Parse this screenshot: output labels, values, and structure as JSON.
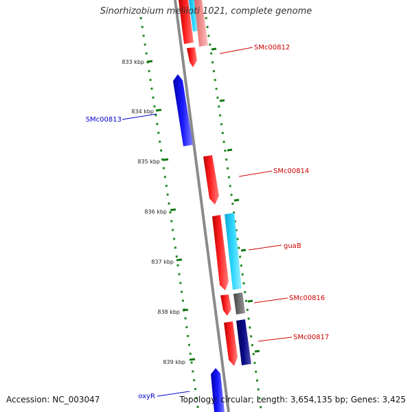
{
  "title": "Sinorhizobium meliloti 1021, complete genome",
  "footer": {
    "accession": "Accession: NC_003047",
    "summary": "Topology: circular; Length: 3,654,135 bp; Genes: 3,425"
  },
  "ticks": [
    "833 kbp",
    "834 kbp",
    "835 kbp",
    "836 kbp",
    "837 kbp",
    "838 kbp",
    "839 kbp"
  ],
  "genes": [
    {
      "label": "SMc00812",
      "color": "#cc0000"
    },
    {
      "label": "SMc00813",
      "color": "#0000cc"
    },
    {
      "label": "SMc00814",
      "color": "#cc0000"
    },
    {
      "label": "guaB",
      "color": "#cc0000"
    },
    {
      "label": "SMc00816",
      "color": "#cc0000"
    },
    {
      "label": "SMc00817",
      "color": "#cc0000"
    },
    {
      "label": "oxyR",
      "color": "#0000cc"
    }
  ],
  "colors": {
    "backbone": "#888888",
    "tick_dots": "#228822",
    "gene_red": "#ff1a1a",
    "gene_pink": "#f08080",
    "gene_blue": "#1a1aff",
    "gene_cyan": "#22ccf0",
    "gene_gray": "#666666",
    "gene_navy": "#0a0a80"
  }
}
